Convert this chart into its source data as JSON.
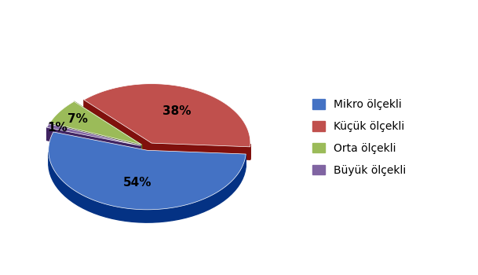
{
  "labels": [
    "Mikro ölçekli",
    "Küçük ölçekli",
    "Orta ölçekli",
    "Büyük ölçekli"
  ],
  "values": [
    54,
    38,
    7,
    1
  ],
  "colors": [
    "#4472C4",
    "#C0504D",
    "#9BBB59",
    "#8064A2"
  ],
  "explode": [
    0.05,
    0.08,
    0.08,
    0.08
  ],
  "pct_labels": [
    "54%",
    "38%",
    "7%",
    "1%"
  ],
  "legend_labels": [
    "Mikro ölçekli",
    "Küçük ölçekli",
    "Orta ölçekli",
    "Büyük ölçekli"
  ],
  "startangle": 162,
  "background_color": "#ffffff",
  "figure_width": 6.09,
  "figure_height": 3.5,
  "dpi": 100
}
